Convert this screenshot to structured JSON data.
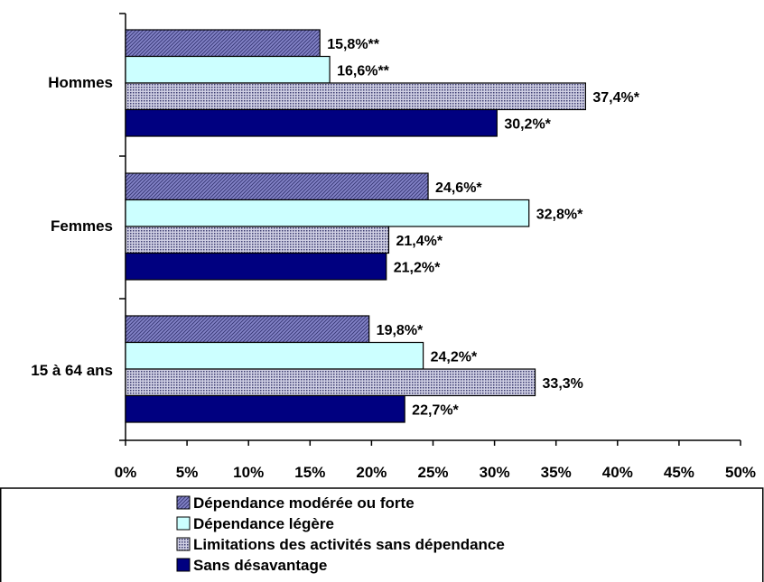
{
  "chart_data": {
    "type": "bar",
    "orientation": "horizontal",
    "categories": [
      "Hommes",
      "Femmes",
      "15 à 64 ans"
    ],
    "series": [
      {
        "name": "Dépendance modérée ou forte",
        "values": [
          15.8,
          24.6,
          19.8
        ],
        "labels": [
          "15,8%**",
          "24,6%*",
          "19,8%*"
        ],
        "color": "#7b7bc0",
        "pattern": "diagonal-hatch"
      },
      {
        "name": "Dépendance légère",
        "values": [
          16.6,
          32.8,
          24.2
        ],
        "labels": [
          "16,6%**",
          "32,8%*",
          "24,2%*"
        ],
        "color": "#ccffff",
        "pattern": "solid"
      },
      {
        "name": "Limitations des activités sans dépendance",
        "values": [
          37.4,
          21.4,
          33.3
        ],
        "labels": [
          "37,4%*",
          "21,4%*",
          "33,3%"
        ],
        "color": "#9a9ab8",
        "pattern": "dotted"
      },
      {
        "name": "Sans désavantage",
        "values": [
          30.2,
          21.2,
          22.7
        ],
        "labels": [
          "30,2%*",
          "21,2%*",
          "22,7%*"
        ],
        "color": "#000080",
        "pattern": "solid"
      }
    ],
    "xlim": [
      0,
      50
    ],
    "xticks": [
      "0%",
      "5%",
      "10%",
      "15%",
      "20%",
      "25%",
      "30%",
      "35%",
      "40%",
      "45%",
      "50%"
    ],
    "grid": false,
    "legend_position": "bottom"
  }
}
